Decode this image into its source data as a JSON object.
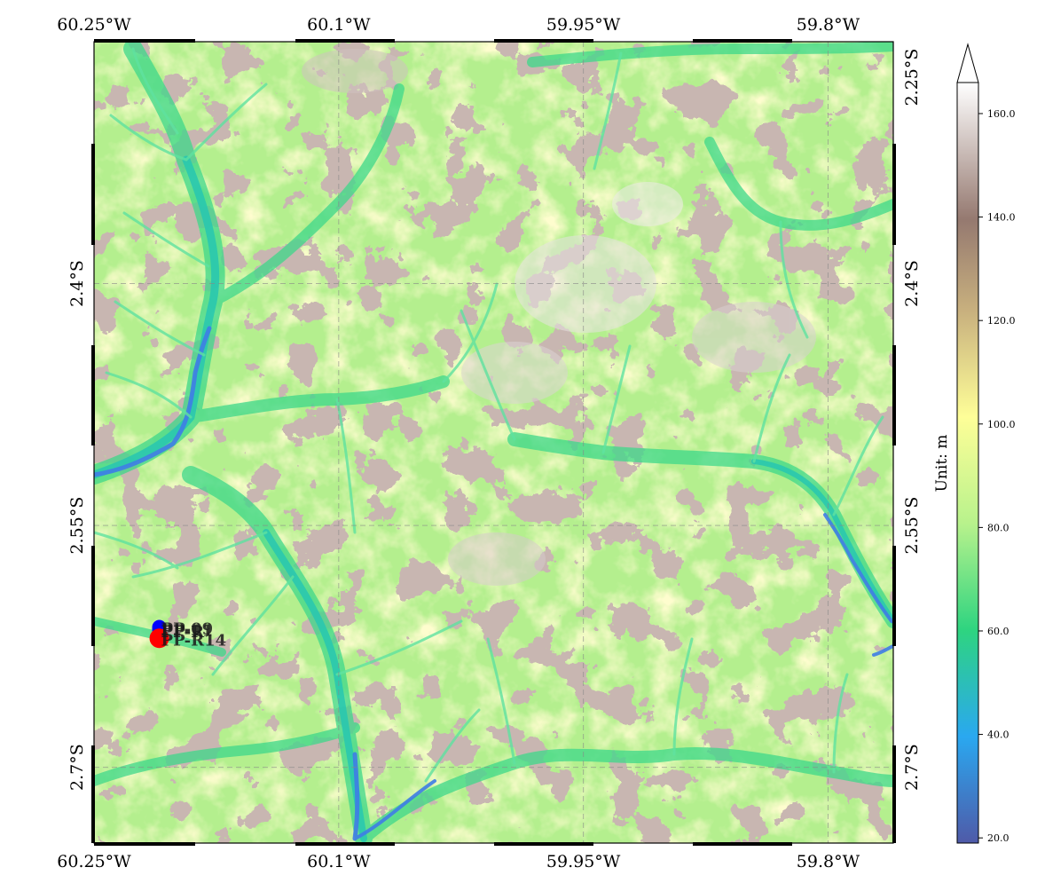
{
  "map": {
    "lon_ticks": [
      {
        "label": "60.25°W",
        "lon": -60.25
      },
      {
        "label": "60.1°W",
        "lon": -60.1
      },
      {
        "label": "59.95°W",
        "lon": -59.95
      },
      {
        "label": "59.8°W",
        "lon": -59.8
      }
    ],
    "lat_ticks": [
      {
        "label": "2.25°S",
        "lat": -2.25
      },
      {
        "label": "2.4°S",
        "lat": -2.4
      },
      {
        "label": "2.55°S",
        "lat": -2.55
      },
      {
        "label": "2.7°S",
        "lat": -2.7
      }
    ],
    "extent": {
      "lon_min": -60.25,
      "lon_max": -59.76,
      "lat_min": -2.747,
      "lat_max": -2.25
    },
    "gridlines": true,
    "basemap": "elevation (DEM)"
  },
  "markers": [
    {
      "label": "PP-09",
      "lon": -60.21,
      "lat": -2.613,
      "color": "#0000ff"
    },
    {
      "label": "PP-11",
      "lon": -60.21,
      "lat": -2.614,
      "color": "#0000ff"
    },
    {
      "label": "PP-R",
      "lon": -60.21,
      "lat": -2.615,
      "color": "#0000ff"
    },
    {
      "label": "PP-R14",
      "lon": -60.21,
      "lat": -2.62,
      "color": "#ff0000"
    }
  ],
  "colorbar": {
    "label": "Unit: m",
    "ticks": [
      {
        "label": "20.0",
        "value": 20
      },
      {
        "label": "40.0",
        "value": 40
      },
      {
        "label": "60.0",
        "value": 60
      },
      {
        "label": "80.0",
        "value": 80
      },
      {
        "label": "100.0",
        "value": 100
      },
      {
        "label": "120.0",
        "value": 120
      },
      {
        "label": "140.0",
        "value": 140
      },
      {
        "label": "160.0",
        "value": 160
      }
    ],
    "vmin": 19,
    "vmax": 166,
    "extend": "max",
    "colors": [
      "#4f5aa8",
      "#2aa8f0",
      "#2ed480",
      "#b8f28c",
      "#fefe98",
      "#c8b07e",
      "#957970",
      "#ffffff"
    ]
  }
}
